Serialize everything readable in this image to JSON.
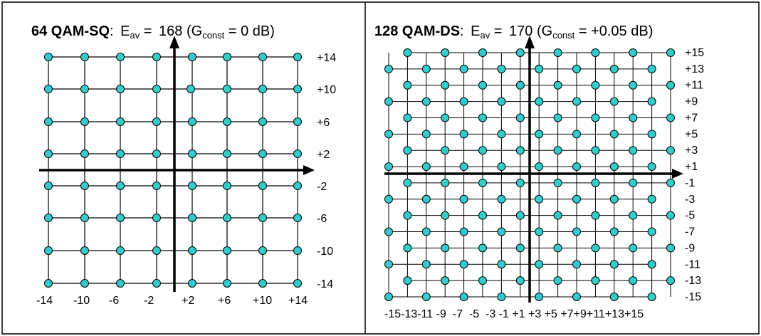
{
  "panels": [
    {
      "scheme": "64 QAM-SQ",
      "energy_symbol": "E",
      "energy_sub": "av",
      "energy_value": "168",
      "gain_symbol": "G",
      "gain_sub": "const",
      "gain_value": "0 dB",
      "y_tick_labels": [
        "+14",
        "+10",
        "+6",
        "+2",
        "-2",
        "-6",
        "-10",
        "-14"
      ],
      "x_tick_labels": [
        "-14",
        "-10",
        "-6",
        "-2",
        "+2",
        "+6",
        "+10",
        "+14"
      ]
    },
    {
      "scheme": "128 QAM-DS",
      "energy_symbol": "E",
      "energy_sub": "av",
      "energy_value": "170",
      "gain_symbol": "G",
      "gain_sub": "const",
      "gain_value": "+0.05 dB",
      "y_tick_labels": [
        "+15",
        "+13",
        "+11",
        "+9",
        "+7",
        "+5",
        "+3",
        "+1",
        "-1",
        "-3",
        "-5",
        "-7",
        "-9",
        "-11",
        "-13",
        "-15"
      ],
      "x_tick_labels": "-15-13-11 -9  -7  -5  -3 -1 +1 +3 +5 +7+9+11+13+15"
    }
  ],
  "colors": {
    "point": "#33cccc",
    "line": "#000000",
    "border": "#000000"
  }
}
